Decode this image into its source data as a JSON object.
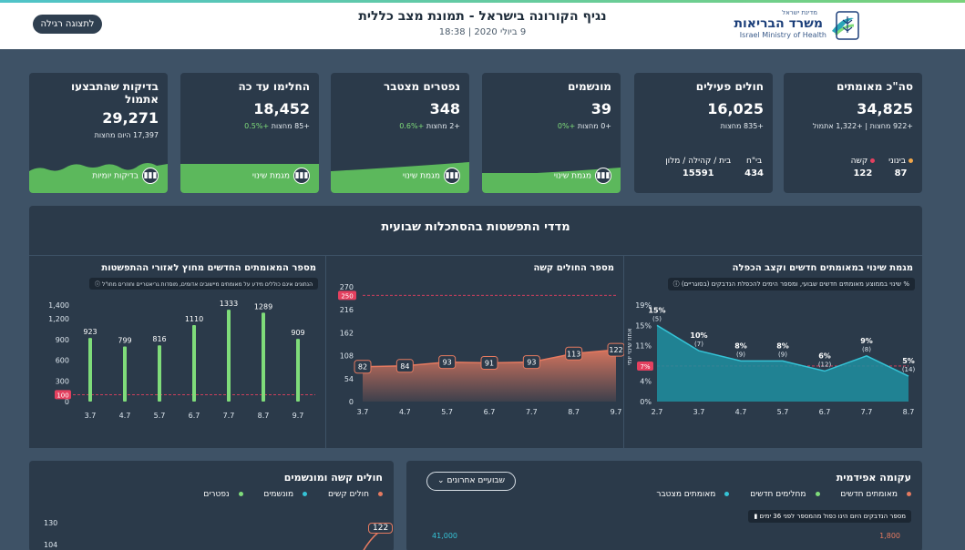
{
  "header": {
    "title": "נגיף הקורונה בישראל - תמונת מצב כללית",
    "date": "9 ביולי 2020 | 18:38",
    "back_button": "לתצוגה רגילה",
    "logo_small": "מדינת ישראל",
    "logo_big": "משרד הבריאות",
    "logo_en": "Israel Ministry of Health"
  },
  "cards": [
    {
      "title": "סה\"כ מאומתים",
      "value": "34,825",
      "sub": "+922 מחצות | +1,322 אתמול",
      "b1_label": "בינוני",
      "b1_val": "87",
      "b2_label": "קשה",
      "b2_val": "122"
    },
    {
      "title": "חולים פעילים",
      "value": "16,025",
      "sub": "+835 מחצות",
      "b1_label": "בי\"ח",
      "b1_val": "434",
      "b2_label": "בית / קהילה / מלון",
      "b2_val": "15591"
    },
    {
      "title": "מונשמים",
      "value": "39",
      "sub_a": "+0 מחצות",
      "sub_b": "+0%",
      "btn": "מגמת שינוי"
    },
    {
      "title": "נפטרים מצטבר",
      "value": "348",
      "sub_a": "+2 מחצות",
      "sub_b": "+0.6%",
      "btn": "מגמת שינוי"
    },
    {
      "title": "החלימו עד כה",
      "value": "18,452",
      "sub_a": "+85 מחצות",
      "sub_b": "+0.5%",
      "btn": "מגמת שינוי"
    },
    {
      "title": "בדיקות שהתבצעו אתמול",
      "value": "29,271",
      "sub_a": "17,397 היום מחצות",
      "btn": "בדיקות יומיות"
    }
  ],
  "panel": {
    "title": "מדדי התפשטות בהסתכלות שבועית",
    "left_title": "מספר המאומתים החדשים מחוץ לאזורי ההתפשטות",
    "left_note": "הנתונים אינם כוללים מידע על מאומתים מיישובים אדומים, מוסדות גריאטריים וחוזרים מחו\"ל",
    "mid_title": "מספר החולים קשה",
    "right_title": "מגמת שינוי במאומתים חדשים וקצב הכפלה",
    "right_note": "% שינוי בממוצע מאומתים חדשים שבועי, ומספר הימים להכפלת הנדבקים (בסוגריים)",
    "right_ylabel": "אחוז שינוי יומי"
  },
  "chart_data": [
    {
      "type": "bar",
      "title": "מספר המאומתים החדשים מחוץ לאזורי ההתפשטות",
      "categories": [
        "3.7",
        "4.7",
        "5.7",
        "6.7",
        "7.7",
        "8.7",
        "9.7"
      ],
      "values": [
        923,
        799,
        816,
        1110,
        1333,
        1289,
        909
      ],
      "yticks": [
        "0",
        "300",
        "600",
        "900",
        "1,200",
        "1,400"
      ],
      "ylim": [
        0,
        1400
      ],
      "threshold": 100,
      "threshold_label": "100"
    },
    {
      "type": "area",
      "title": "מספר החולים קשה",
      "categories": [
        "3.7",
        "4.7",
        "5.7",
        "6.7",
        "7.7",
        "8.7",
        "9.7"
      ],
      "values": [
        82,
        84,
        93,
        91,
        93,
        113,
        122
      ],
      "yticks": [
        "0",
        "54",
        "108",
        "162",
        "216",
        "270"
      ],
      "ylim": [
        0,
        270
      ],
      "threshold": 250,
      "threshold_label": "250"
    },
    {
      "type": "area",
      "title": "מגמת שינוי במאומתים חדשים וקצב הכפלה",
      "categories": [
        "2.7",
        "3.7",
        "4.7",
        "5.7",
        "6.7",
        "7.7",
        "8.7"
      ],
      "values": [
        15,
        10,
        8,
        8,
        6,
        9,
        5
      ],
      "labels": [
        "15%",
        "10%",
        "8%",
        "8%",
        "6%",
        "9%",
        "5%"
      ],
      "doubling": [
        "(5)",
        "(7)",
        "(9)",
        "(9)",
        "(12)",
        "(8)",
        "(14)"
      ],
      "yticks": [
        "0%",
        "4%",
        "7%",
        "11%",
        "15%",
        "19%"
      ],
      "ylim": [
        0,
        19
      ],
      "threshold": 7,
      "threshold_label": "7%"
    },
    {
      "type": "line",
      "title": "חולים קשה ומונשמים",
      "yticks": [
        "104",
        "130"
      ],
      "values": [
        122
      ]
    }
  ],
  "bottom_right": {
    "title": "עקומה אפידמית",
    "legend": [
      "מאומתים חדשים",
      "מחלימים חדשים",
      "מאומתים מצטבר"
    ],
    "weeks": "שבועיים אחרונים",
    "note": "מספר הנדבקים היום הינו כפול מהמספר לפני 36 ימים",
    "axis_left": "41,000",
    "axis_right": "1,800"
  },
  "bottom_left": {
    "title": "חולים קשה ומונשמים",
    "legend": [
      "חולים קשים",
      "מונשמים",
      "נפטרים"
    ],
    "y1": "130",
    "y2": "104",
    "callout": "122"
  },
  "colors": {
    "green": "#7fdc7a",
    "teal": "#2aa6b7",
    "salmon": "#e57a60",
    "red": "#e4405f"
  }
}
